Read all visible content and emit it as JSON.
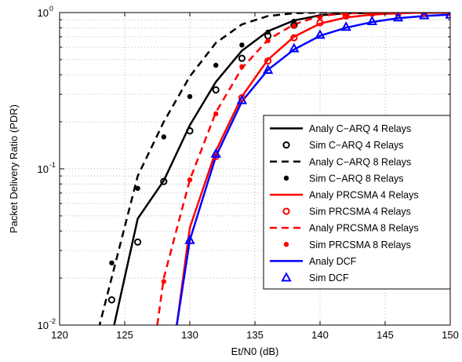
{
  "chart_data": {
    "type": "line",
    "title": "",
    "xlabel": "Et/N0 (dB)",
    "ylabel": "Packet Delivery Ratio (PDR)",
    "xlim": [
      120,
      150
    ],
    "ylim": [
      0.01,
      1
    ],
    "yscale": "log",
    "grid": true,
    "legend_position": "lower-right",
    "x_ticks": [
      120,
      125,
      130,
      135,
      140,
      145,
      150
    ],
    "x_tick_labels": [
      "120",
      "125",
      "130",
      "135",
      "140",
      "145",
      "150"
    ],
    "y_ticks": [
      0.01,
      0.1,
      1
    ],
    "y_tick_labels": [
      {
        "base": "10",
        "exp": "-2"
      },
      {
        "base": "10",
        "exp": "-1"
      },
      {
        "base": "10",
        "exp": "0"
      }
    ],
    "series": [
      {
        "name": "Analy C−ARQ 4 Relays",
        "color": "#000000",
        "dash": "solid",
        "marker": "none",
        "x": [
          124,
          126,
          128,
          130,
          132,
          134,
          136,
          138,
          140,
          142,
          150
        ],
        "y": [
          0.0085,
          0.048,
          0.084,
          0.19,
          0.36,
          0.57,
          0.76,
          0.89,
          0.96,
          0.99,
          1.0
        ]
      },
      {
        "name": "Sim C−ARQ 4 Relays",
        "color": "#000000",
        "marker": "open-circle",
        "x": [
          124,
          126,
          128,
          130,
          132,
          134,
          136,
          138
        ],
        "y": [
          0.0145,
          0.034,
          0.083,
          0.175,
          0.32,
          0.51,
          0.71,
          0.83
        ]
      },
      {
        "name": "Analy C−ARQ 8 Relays",
        "color": "#000000",
        "dash": "dashed",
        "marker": "none",
        "x": [
          123,
          126,
          128,
          130,
          132,
          134,
          136,
          138,
          140,
          150
        ],
        "y": [
          0.0095,
          0.09,
          0.2,
          0.39,
          0.64,
          0.84,
          0.95,
          0.99,
          1.0,
          1.0
        ]
      },
      {
        "name": "Sim C−ARQ 8 Relays",
        "color": "#000000",
        "marker": "filled-dot",
        "x": [
          124,
          126,
          128,
          130,
          132,
          134,
          136,
          138
        ],
        "y": [
          0.025,
          0.075,
          0.16,
          0.29,
          0.46,
          0.62,
          0.75,
          0.88
        ]
      },
      {
        "name": "Analy PRCSMA 4 Relays",
        "color": "#ff0000",
        "dash": "solid",
        "marker": "none",
        "x": [
          129,
          130,
          132,
          134,
          136,
          138,
          140,
          142,
          144,
          146,
          148,
          150
        ],
        "y": [
          0.01,
          0.042,
          0.13,
          0.29,
          0.5,
          0.7,
          0.85,
          0.93,
          0.97,
          0.99,
          1.0,
          1.0
        ]
      },
      {
        "name": "Sim PRCSMA 4 Relays",
        "color": "#ff0000",
        "marker": "open-circle",
        "x": [
          132,
          134,
          136,
          138,
          140,
          142,
          144,
          146,
          148,
          150
        ],
        "y": [
          0.12,
          0.285,
          0.49,
          0.69,
          0.86,
          0.95,
          0.99,
          0.99,
          0.99,
          1.0
        ]
      },
      {
        "name": "Analy PRCSMA 8 Relays",
        "color": "#ff0000",
        "dash": "dashed",
        "marker": "none",
        "x": [
          127.5,
          128,
          130,
          132,
          134,
          136,
          138,
          140,
          142,
          144,
          150
        ],
        "y": [
          0.01,
          0.02,
          0.085,
          0.23,
          0.44,
          0.67,
          0.84,
          0.95,
          0.99,
          1.0,
          1.0
        ]
      },
      {
        "name": "Sim PRCSMA 8 Relays",
        "color": "#ff0000",
        "marker": "filled-dot",
        "x": [
          128,
          130,
          132,
          134,
          136,
          138,
          140,
          142,
          144,
          146,
          148,
          150
        ],
        "y": [
          0.019,
          0.085,
          0.225,
          0.45,
          0.66,
          0.82,
          0.93,
          0.97,
          0.99,
          1.0,
          1.0,
          1.0
        ]
      },
      {
        "name": "Analy DCF",
        "color": "#0000ff",
        "dash": "solid",
        "marker": "none",
        "x": [
          129,
          130,
          132,
          134,
          136,
          138,
          140,
          142,
          144,
          146,
          148,
          150
        ],
        "y": [
          0.01,
          0.035,
          0.12,
          0.27,
          0.43,
          0.58,
          0.71,
          0.8,
          0.87,
          0.92,
          0.95,
          0.97
        ]
      },
      {
        "name": "Sim DCF",
        "color": "#0000ff",
        "marker": "triangle",
        "x": [
          130,
          132,
          134,
          136,
          138,
          140,
          142,
          144,
          146,
          148,
          150
        ],
        "y": [
          0.035,
          0.125,
          0.275,
          0.43,
          0.59,
          0.72,
          0.81,
          0.88,
          0.93,
          0.96,
          0.97
        ]
      }
    ]
  }
}
